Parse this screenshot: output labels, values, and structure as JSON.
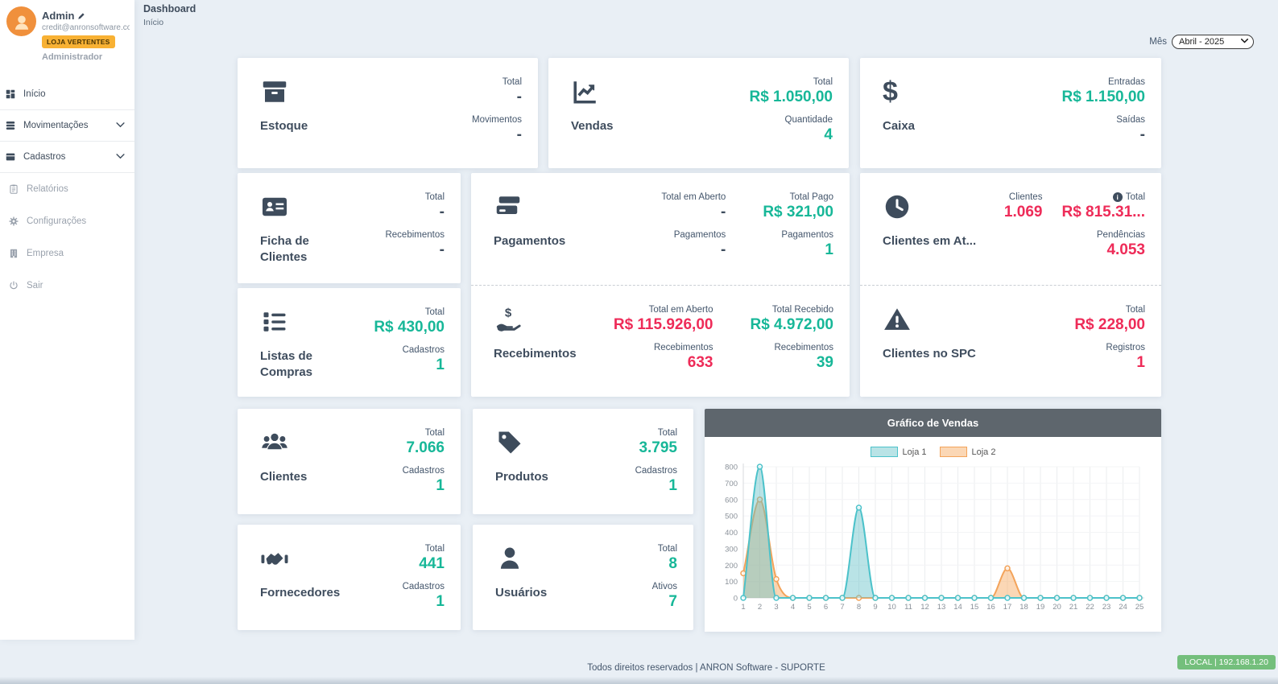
{
  "sidebar": {
    "profile": {
      "name": "Admin",
      "email": "credit@anronsoftware.co...",
      "store_badge": "LOJA VERTENTES",
      "role": "Administrador"
    },
    "menu": [
      {
        "label": "Início",
        "icon": "dashboard-icon"
      },
      {
        "label": "Movimentações",
        "icon": "coins-icon"
      },
      {
        "label": "Cadastros",
        "icon": "archive-icon"
      },
      {
        "label": "Relatórios",
        "icon": "clipboard-icon"
      },
      {
        "label": "Configurações",
        "icon": "gear-icon"
      },
      {
        "label": "Empresa",
        "icon": "building-icon"
      },
      {
        "label": "Sair",
        "icon": "power-icon"
      }
    ]
  },
  "header": {
    "title": "Dashboard",
    "breadcrumb": "Início",
    "month_label": "Mês",
    "month_value": "Abril - 2025"
  },
  "cards": {
    "estoque": {
      "title": "Estoque",
      "icon": "archive-box-icon",
      "stats": [
        {
          "label": "Total",
          "value": "-",
          "tone": "dark"
        },
        {
          "label": "Movimentos",
          "value": "-",
          "tone": "dark"
        }
      ]
    },
    "vendas": {
      "title": "Vendas",
      "icon": "sales-chart-icon",
      "stats": [
        {
          "label": "Total",
          "value": "R$ 1.050,00",
          "tone": "green"
        },
        {
          "label": "Quantidade",
          "value": "4",
          "tone": "green"
        }
      ]
    },
    "caixa": {
      "title": "Caixa",
      "icon": "dollar-icon",
      "stats": [
        {
          "label": "Entradas",
          "value": "R$ 1.150,00",
          "tone": "green"
        },
        {
          "label": "Saídas",
          "value": "-",
          "tone": "dark"
        }
      ]
    },
    "ficha_clientes": {
      "title": "Ficha de Clientes",
      "icon": "id-card-icon",
      "stats": [
        {
          "label": "Total",
          "value": "-",
          "tone": "dark"
        },
        {
          "label": "Recebimentos",
          "value": "-",
          "tone": "dark"
        }
      ]
    },
    "listas_compras": {
      "title": "Listas de Compras",
      "icon": "list-icon",
      "stats": [
        {
          "label": "Total",
          "value": "R$ 430,00",
          "tone": "green"
        },
        {
          "label": "Cadastros",
          "value": "1",
          "tone": "green"
        }
      ]
    },
    "pagamentos": {
      "title": "Pagamentos",
      "icon": "credit-card-icon",
      "col1": [
        {
          "label": "Total em Aberto",
          "value": "-",
          "tone": "dark"
        },
        {
          "label": "Pagamentos",
          "value": "-",
          "tone": "dark"
        }
      ],
      "col2": [
        {
          "label": "Total Pago",
          "value": "R$ 321,00",
          "tone": "green"
        },
        {
          "label": "Pagamentos",
          "value": "1",
          "tone": "green"
        }
      ]
    },
    "recebimentos": {
      "title": "Recebimentos",
      "icon": "hand-dollar-icon",
      "col1": [
        {
          "label": "Total em Aberto",
          "value": "R$ 115.926,00",
          "tone": "red"
        },
        {
          "label": "Recebimentos",
          "value": "633",
          "tone": "red"
        }
      ],
      "col2": [
        {
          "label": "Total Recebido",
          "value": "R$ 4.972,00",
          "tone": "green"
        },
        {
          "label": "Recebimentos",
          "value": "39",
          "tone": "green"
        }
      ]
    },
    "clientes_atraso": {
      "title": "Clientes em At...",
      "icon": "clock-icon",
      "col1": [
        {
          "label": "Clientes",
          "value": "1.069",
          "tone": "red"
        }
      ],
      "col2": [
        {
          "label": "Total",
          "value": "R$ 815.31...",
          "tone": "red",
          "info": true
        },
        {
          "label": "Pendências",
          "value": "4.053",
          "tone": "red"
        }
      ]
    },
    "clientes_spc": {
      "title": "Clientes no SPC",
      "icon": "warning-icon",
      "stats": [
        {
          "label": "Total",
          "value": "R$ 228,00",
          "tone": "red"
        },
        {
          "label": "Registros",
          "value": "1",
          "tone": "red"
        }
      ]
    },
    "clientes": {
      "title": "Clientes",
      "icon": "users-icon",
      "stats": [
        {
          "label": "Total",
          "value": "7.066",
          "tone": "green"
        },
        {
          "label": "Cadastros",
          "value": "1",
          "tone": "green"
        }
      ]
    },
    "produtos": {
      "title": "Produtos",
      "icon": "tag-icon",
      "stats": [
        {
          "label": "Total",
          "value": "3.795",
          "tone": "green"
        },
        {
          "label": "Cadastros",
          "value": "1",
          "tone": "green"
        }
      ]
    },
    "fornecedores": {
      "title": "Fornecedores",
      "icon": "handshake-icon",
      "stats": [
        {
          "label": "Total",
          "value": "441",
          "tone": "green"
        },
        {
          "label": "Cadastros",
          "value": "1",
          "tone": "green"
        }
      ]
    },
    "usuarios": {
      "title": "Usuários",
      "icon": "user-icon",
      "stats": [
        {
          "label": "Total",
          "value": "8",
          "tone": "green"
        },
        {
          "label": "Ativos",
          "value": "7",
          "tone": "green"
        }
      ]
    }
  },
  "chart_data": {
    "type": "area",
    "title": "Gráfico de Vendas",
    "x": [
      1,
      2,
      3,
      4,
      5,
      6,
      7,
      8,
      9,
      10,
      11,
      12,
      13,
      14,
      15,
      16,
      17,
      18,
      19,
      20,
      21,
      22,
      23,
      24,
      25
    ],
    "series": [
      {
        "name": "Loja 1",
        "color": "#4cc2ca",
        "fill_color": "rgba(99,192,200,0.45)",
        "values": [
          0,
          800,
          0,
          0,
          0,
          0,
          0,
          550,
          0,
          0,
          0,
          0,
          0,
          0,
          0,
          0,
          0,
          0,
          0,
          0,
          0,
          0,
          0,
          0,
          0
        ]
      },
      {
        "name": "Loja 2",
        "color": "#f3a35a",
        "fill_color": "rgba(246,166,91,0.45)",
        "values": [
          150,
          600,
          115,
          0,
          0,
          0,
          0,
          0,
          0,
          0,
          0,
          0,
          0,
          0,
          0,
          0,
          180,
          0,
          0,
          0,
          0,
          0,
          0,
          0,
          0
        ]
      }
    ],
    "xlabel": "",
    "ylabel": "",
    "ylim": [
      0,
      800
    ],
    "yticks": [
      0,
      100,
      200,
      300,
      400,
      500,
      600,
      700,
      800
    ],
    "legend_position": "top",
    "grid": true
  },
  "footer": {
    "copyright": "Todos direitos reservados | ANRON Software - SUPORTE",
    "server_badge": "LOCAL | 192.168.1.20"
  },
  "colors": {
    "positive": "#17b798",
    "negative": "#ee2b58",
    "badge_orange": "#f8b133",
    "chart_header": "#5e666d",
    "server_badge_green": "#74bf7c"
  }
}
